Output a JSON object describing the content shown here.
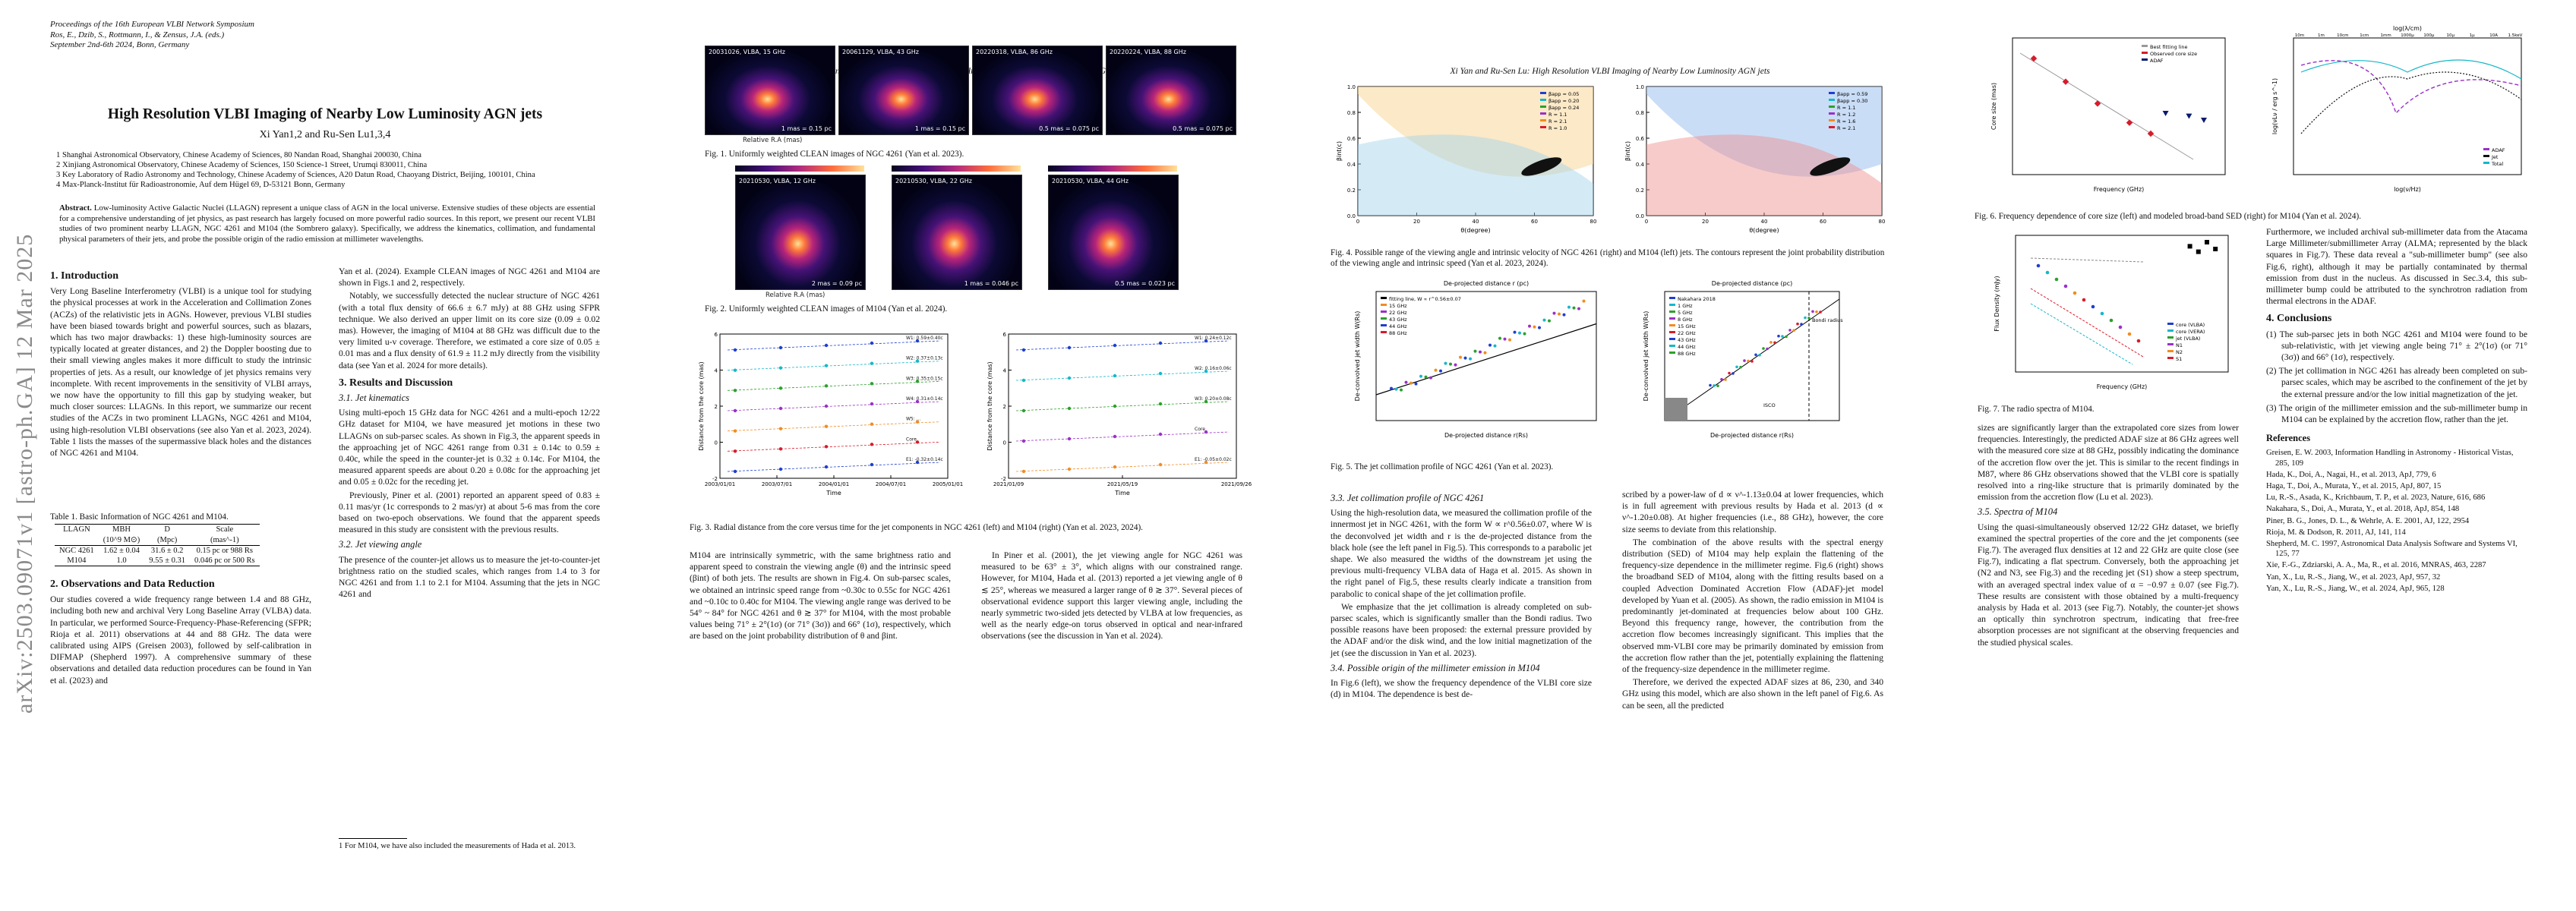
{
  "arxiv_id": "arXiv:2503.09071v1  [astro-ph.GA]  12 Mar 2025",
  "proceedings": [
    "Proceedings of the 16th European VLBI Network Symposium",
    "Ros, E., Dzib, S., Rottmann, I., & Zensus, J.A. (eds.)",
    "September 2nd-6th 2024, Bonn, Germany"
  ],
  "title": "High Resolution VLBI Imaging of Nearby Low Luminosity AGN jets",
  "authors": "Xi Yan1,2 and Ru-Sen Lu1,3,4",
  "affiliations": [
    "1 Shanghai Astronomical Observatory, Chinese Academy of Sciences, 80 Nandan Road, Shanghai 200030, China",
    "2 Xinjiang Astronomical Observatory, Chinese Academy of Sciences, 150 Science-1 Street, Urumqi 830011, China",
    "3 Key Laboratory of Radio Astronomy and Technology, Chinese Academy of Sciences, A20 Datun Road, Chaoyang District, Beijing, 100101, China",
    "4 Max-Planck-Institut für Radioastronomie, Auf dem Hügel 69, D-53121 Bonn, Germany"
  ],
  "abstract_label": "Abstract.",
  "abstract": "Low-luminosity Active Galactic Nuclei (LLAGN) represent a unique class of AGN in the local universe. Extensive studies of these objects are essential for a comprehensive understanding of jet physics, as past research has largely focused on more powerful radio sources. In this report, we present our recent VLBI studies of two prominent nearby LLAGN, NGC 4261 and M104 (the Sombrero galaxy). Specifically, we address the kinematics, collimation, and fundamental physical parameters of their jets, and probe the possible origin of the radio emission at millimeter wavelengths.",
  "running_head": "Xi Yan and Ru-Sen Lu: High Resolution VLBI Imaging of Nearby Low Luminosity AGN jets",
  "sec1_title": "1. Introduction",
  "sec1_p1": "Very Long Baseline Interferometry (VLBI) is a unique tool for studying the physical processes at work in the Acceleration and Collimation Zones (ACZs) of the relativistic jets in AGNs. However, previous VLBI studies have been biased towards bright and powerful sources, such as blazars, which has two major drawbacks: 1) these high-luminosity sources are typically located at greater distances, and 2) the Doppler boosting due to their small viewing angles makes it more difficult to study the intrinsic properties of jets. As a result, our knowledge of jet physics remains very incomplete. With recent improvements in the sensitivity of VLBI arrays, we now have the opportunity to fill this gap by studying weaker, but much closer sources: LLAGNs. In this report, we summarize our recent studies of the ACZs in two prominent LLAGNs, NGC 4261 and M104, using high-resolution VLBI observations (see also Yan et al. 2023, 2024). Table 1 lists the masses of the supermassive black holes and the distances of NGC 4261 and M104.",
  "table1_caption": "Table 1. Basic Information of NGC 4261 and M104.",
  "table1": {
    "headers": [
      "LLAGN",
      "MBH",
      "D",
      "Scale"
    ],
    "units": [
      "",
      "(10^9 M⊙)",
      "(Mpc)",
      "(mas^-1)"
    ],
    "rows": [
      [
        "NGC 4261",
        "1.62 ± 0.04",
        "31.6 ± 0.2",
        "0.15 pc or 988 Rs"
      ],
      [
        "M104",
        "1.0",
        "9.55 ± 0.31",
        "0.046 pc or 500 Rs"
      ]
    ]
  },
  "sec2_title": "2. Observations and Data Reduction",
  "sec2_p1": "Our studies covered a wide frequency range between 1.4 and 88 GHz, including both new and archival Very Long Baseline Array (VLBA) data. In particular, we performed Source-Frequency-Phase-Referencing (SFPR; Rioja et al. 2011) observations at 44 and 88 GHz. The data were calibrated using AIPS (Greisen 2003), followed by self-calibration in DIFMAP (Shepherd 1997). A comprehensive summary of these observations and detailed data reduction procedures can be found in Yan et al. (2023) and",
  "p2_col1_cont": "Yan et al. (2024). Example CLEAN images of NGC 4261 and M104 are shown in Figs.1 and 2, respectively.",
  "p2_col1_p2": "Notably, we successfully detected the nuclear structure of NGC 4261 (with a total flux density of 66.6 ± 6.7 mJy) at 88 GHz using SFPR technique. We also derived an upper limit on its core size (0.09 ± 0.02 mas). However, the imaging of M104 at 88 GHz was difficult due to the very limited u-v coverage. Therefore, we estimated a core size of 0.05 ± 0.01 mas and a flux density of 61.9 ± 11.2 mJy directly from the visibility data (see Yan et al. 2024 for more details).",
  "sec3_title": "3. Results and Discussion",
  "sec31_title": "3.1. Jet kinematics",
  "sec31_p1": "Using multi-epoch 15 GHz data for NGC 4261 and a multi-epoch 12/22 GHz dataset for M104, we have measured jet motions in these two LLAGNs on sub-parsec scales. As shown in Fig.3, the apparent speeds in the approaching jet of NGC 4261 range from 0.31 ± 0.14c to 0.59 ± 0.40c, while the speed in the counter-jet is 0.32 ± 0.14c. For M104, the measured apparent speeds are about 0.20 ± 0.08c for the approaching jet and 0.05 ± 0.02c for the receding jet.",
  "sec31_p2": "Previously, Piner et al. (2001) reported an apparent speed of 0.83 ± 0.11 mas/yr (1c corresponds to 2 mas/yr) at about 5-6 mas from the core based on two-epoch observations. We found that the apparent speeds measured in this study are consistent with the previous results.",
  "sec32_title": "3.2. Jet viewing angle",
  "sec32_p1": "The presence of the counter-jet allows us to measure the jet-to-counter-jet brightness ratio on the studied scales, which ranges from 1.4 to 3 for NGC 4261 and from 1.1 to 2.1 for M104. Assuming that the jets in NGC 4261 and",
  "footnote": "1 For M104, we have also included the measurements of Hada et al. 2013.",
  "fig1_caption": "Fig. 1. Uniformly weighted CLEAN images of NGC 4261 (Yan et al. 2023).",
  "fig1_panels": [
    "20031026, VLBA, 15 GHz",
    "20061129, VLBA, 43 GHz",
    "20220318, VLBA, 86 GHz",
    "20220224, VLBA, 88 GHz"
  ],
  "fig1_beams": [
    "1 mas = 0.15 pc",
    "1 mas = 0.15 pc",
    "0.5 mas = 0.075 pc",
    "0.5 mas = 0.075 pc"
  ],
  "fig2_caption": "Fig. 2. Uniformly weighted CLEAN images of M104 (Yan et al. 2024).",
  "fig2_panels": [
    "20210530, VLBA, 12 GHz",
    "20210530, VLBA, 22 GHz",
    "20210530, VLBA, 44 GHz"
  ],
  "fig2_beams": [
    "2 mas = 0.09 pc",
    "1 mas = 0.046 pc",
    "0.5 mas = 0.023 pc"
  ],
  "img_xlabel": "Relative R.A (mas)",
  "img_ylabel": "Relative Dec (mas)",
  "fig3_caption": "Fig. 3. Radial distance from the core versus time for the jet components in NGC 4261 (left) and M104 (right) (Yan et al. 2023, 2024).",
  "fig3_left": {
    "xlabel": "Time",
    "ylabel": "Distance from the core (mas)",
    "xticks": [
      "2003/01/01",
      "2003/07/01",
      "2004/01/01",
      "2004/07/01",
      "2005/01/01"
    ],
    "yticks": [
      "-2",
      "0",
      "2",
      "4",
      "6"
    ],
    "labels": [
      "W1: 0.59±0.40c",
      "W2: 0.37±0.13c",
      "W3: 0.35±0.15c",
      "W4: 0.31±0.14c",
      "W5: ...",
      "Core",
      "E1: -0.32±0.14c"
    ]
  },
  "fig3_right": {
    "xlabel": "Time",
    "ylabel": "Distance from the core (mas)",
    "xticks": [
      "2021/01/09",
      "2021/05/19",
      "2021/09/26"
    ],
    "yticks": [
      "-2",
      "0",
      "2",
      "4",
      "6"
    ],
    "labels": [
      "W1: 0.24±0.12c",
      "W2: 0.16±0.06c",
      "W3: 0.20±0.08c",
      "Core",
      "E1: -0.05±0.02c"
    ]
  },
  "p2_col2_p1": "M104 are intrinsically symmetric, with the same brightness ratio and apparent speed to constrain the viewing angle (θ) and the intrinsic speed (βint) of both jets. The results are shown in Fig.4. On sub-parsec scales, we obtained an intrinsic speed range from ~0.30c to 0.55c for NGC 4261 and ~0.10c to 0.40c for M104. The viewing angle range was derived to be 54° ~ 84° for NGC 4261 and θ ≳ 37° for M104, with the most probable values being 71° ± 2°(1σ) (or 71° (3σ)) and 66° (1σ), respectively, which are based on the joint probability distribution of θ and βint.",
  "p2_col2_p2": "In Piner et al. (2001), the jet viewing angle for NGC 4261 was measured to be 63° ± 3°, which aligns with our constrained range. However, for M104, Hada et al. (2013) reported a jet viewing angle of θ ≲ 25°, whereas we measured a larger range of θ ≳ 37°. Several pieces of observational evidence support this larger viewing angle, including the nearly symmetric two-sided jets detected by VLBA at low frequencies, as well as the nearly edge-on torus observed in optical and near-infrared observations (see the discussion in Yan et al. 2024).",
  "fig4_caption": "Fig. 4. Possible range of the viewing angle and intrinsic velocity of NGC 4261 (right) and M104 (left) jets. The contours represent the joint probability distribution of the viewing angle and intrinsic speed (Yan et al. 2023, 2024).",
  "fig4_left": {
    "xlabel": "θ(degree)",
    "ylabel": "βint(c)",
    "xticks": [
      "0",
      "20",
      "40",
      "60",
      "80"
    ],
    "yticks": [
      "0.0",
      "0.2",
      "0.4",
      "0.6",
      "0.8",
      "1.0"
    ],
    "legend": [
      "βapp = 0.05",
      "βapp = 0.20",
      "βapp = 0.24",
      "R = 1.1",
      "R = 2.1",
      "R = 1.0"
    ]
  },
  "fig4_right": {
    "xlabel": "θ(degree)",
    "ylabel": "βint(c)",
    "xticks": [
      "0",
      "20",
      "40",
      "60",
      "80"
    ],
    "yticks": [
      "0.0",
      "0.2",
      "0.4",
      "0.6",
      "0.8",
      "1.0"
    ],
    "legend": [
      "βapp = 0.59",
      "βapp = 0.30",
      "R = 1.1",
      "R = 1.2",
      "R = 1.6",
      "R = 2.1"
    ]
  },
  "fig5_caption": "Fig. 5. The jet collimation profile of NGC 4261 (Yan et al. 2023).",
  "fig5_left": {
    "toplabel": "De-projected distance r (pc)",
    "xlabel": "De-projected distance r(Rs)",
    "ylabel": "De-convolved jet width W(Rs)",
    "legend": [
      "fitting line, W ∝ r^0.56±0.07",
      "15 GHz",
      "22 GHz",
      "43 GHz",
      "44 GHz",
      "88 GHz"
    ]
  },
  "fig5_right": {
    "toplabel": "De-projected distance (pc)",
    "xlabel": "De-projected distance r(Rs)",
    "ylabel": "De-convolved jet width W(Rs)",
    "legend": [
      "Nakahara 2018",
      "1 GHz",
      "5 GHz",
      "8 GHz",
      "15 GHz",
      "22 GHz",
      "43 GHz",
      "44 GHz",
      "88 GHz"
    ],
    "annot": [
      "Bondi radius",
      "ISCO"
    ]
  },
  "sec33_title": "3.3. Jet collimation profile of NGC 4261",
  "sec33_p1": "Using the high-resolution data, we measured the collimation profile of the innermost jet in NGC 4261, with the form W ∝ r^0.56±0.07, where W is the deconvolved jet width and r is the de-projected distance from the black hole (see the left panel in Fig.5). This corresponds to a parabolic jet shape. We also measured the widths of the downstream jet using the previous multi-frequency VLBA data of Haga et al. 2015. As shown in the right panel of Fig.5, these results clearly indicate a transition from parabolic to conical shape of the jet collimation profile.",
  "sec33_p2": "We emphasize that the jet collimation is already completed on sub-parsec scales, which is significantly smaller than the Bondi radius. Two possible reasons have been proposed: the external pressure provided by the ADAF and/or the disk wind, and the low initial magnetization of the jet (see the discussion in Yan et al. 2023).",
  "sec34_title": "3.4. Possible origin of the millimeter emission in M104",
  "sec34_p1": "In Fig.6 (left), we show the frequency dependence of the VLBI core size (d) in M104. The dependence is best de-",
  "p3_col2_p1": "scribed by a power-law of d ∝ ν^-1.13±0.04 at lower frequencies, which is in full agreement with previous results by Hada et al. 2013 (d ∝ ν^-1.20±0.08). At higher frequencies (i.e., 88 GHz), however, the core size seems to deviate from this relationship.",
  "p3_col2_p2": "The combination of the above results with the spectral energy distribution (SED) of M104 may help explain the flattening of the frequency-size dependence in the millimeter regime. Fig.6 (right) shows the broadband SED of M104, along with the fitting results based on a coupled Advection Dominated Accretion Flow (ADAF)-jet model developed by Yuan et al. (2005). As shown, the radio emission in M104 is predominantly jet-dominated at frequencies below about 100 GHz. Beyond this frequency range, however, the contribution from the accretion flow becomes increasingly significant. This implies that the observed mm-VLBI core may be primarily dominated by emission from the accretion flow rather than the jet, potentially explaining the flattening of the frequency-size dependence in the millimeter regime.",
  "p3_col2_p3": "Therefore, we derived the expected ADAF sizes at 86, 230, and 340 GHz using this model, which are also shown in the left panel of Fig.6. As can be seen, all the predicted",
  "fig6_caption": "Fig. 6. Frequency dependence of core size (left) and modeled broad-band SED (right) for M104 (Yan et al. 2024).",
  "fig6_left": {
    "xlabel": "Frequency (GHz)",
    "ylabel": "Core size (mas)",
    "legend": [
      "Best fitting line",
      "Observed core size",
      "ADAF"
    ]
  },
  "fig6_right": {
    "xlabel": "log(ν/Hz)",
    "ylabel": "log(νLν / erg s^-1)",
    "toplabel": "log(λ/cm)",
    "topticks": [
      "10m",
      "1m",
      "10cm",
      "1cm",
      "1mm",
      "1000μ",
      "100μ",
      "10μ",
      "1μ",
      "10A",
      "1.5keV"
    ],
    "legend": [
      "ADAF",
      "Jet",
      "Total"
    ]
  },
  "fig7_caption": "Fig. 7. The radio spectra of M104.",
  "fig7": {
    "xlabel": "Frequency (GHz)",
    "ylabel": "Flux Density (mJy)",
    "legend": [
      "core (VLBA)",
      "core (VERA)",
      "jet (VLBA)",
      "N1",
      "N2",
      "S1"
    ]
  },
  "p4_col1_p1": "sizes are significantly larger than the extrapolated core sizes from lower frequencies. Interestingly, the predicted ADAF size at 86 GHz agrees well with the measured core size at 88 GHz, possibly indicating the dominance of the accretion flow over the jet. This is similar to the recent findings in M87, where 86 GHz observations showed that the VLBI core is spatially resolved into a ring-like structure that is primarily dominated by the emission from the accretion flow (Lu et al. 2023).",
  "sec35_title": "3.5. Spectra of M104",
  "sec35_p1": "Using the quasi-simultaneously observed 12/22 GHz dataset, we briefly examined the spectral properties of the core and the jet components (see Fig.7). The averaged flux densities at 12 and 22 GHz are quite close (see Fig.7), indicating a flat spectrum. Conversely, both the approaching jet (N2 and N3, see Fig.3) and the receding jet (S1) show a steep spectrum, with an averaged spectral index value of α = −0.97 ± 0.07 (see Fig.7). These results are consistent with those obtained by a multi-frequency analysis by Hada et al. 2013 (see Fig.7). Notably, the counter-jet shows an optically thin synchrotron spectrum, indicating that free-free absorption processes are not significant at the observing frequencies and the studied physical scales.",
  "p4_col2_p1": "Furthermore, we included archival sub-millimeter data from the Atacama Large Millimeter/submillimeter Array (ALMA; represented by the black squares in Fig.7). These data reveal a \"sub-millimeter bump\" (see also Fig.6, right), although it may be partially contaminated by thermal emission from dust in the nucleus. As discussed in Sec.3.4, this sub-millimeter bump could be attributed to the synchrotron radiation from thermal electrons in the ADAF.",
  "sec4_title": "4. Conclusions",
  "conclusions": [
    "(1) The sub-parsec jets in both NGC 4261 and M104 were found to be sub-relativistic, with jet viewing angle being 71° ± 2°(1σ) (or 71° (3σ)) and 66° (1σ), respectively.",
    "(2) The jet collimation in NGC 4261 has already been completed on sub-parsec scales, which may be ascribed to the confinement of the jet by the external pressure and/or the low initial magnetization of the jet.",
    "(3) The origin of the millimeter emission and the sub-millimeter bump in M104 can be explained by the accretion flow, rather than the jet."
  ],
  "refs_title": "References",
  "references": [
    "Greisen, E. W. 2003, Information Handling in Astronomy - Historical Vistas, 285, 109",
    "Hada, K., Doi, A., Nagai, H., et al. 2013, ApJ, 779, 6",
    "Haga, T., Doi, A., Murata, Y., et al. 2015, ApJ, 807, 15",
    "Lu, R.-S., Asada, K., Krichbaum, T. P., et al. 2023, Nature, 616, 686",
    "Nakahara, S., Doi, A., Murata, Y., et al. 2018, ApJ, 854, 148",
    "Piner, B. G., Jones, D. L., & Wehrle, A. E. 2001, AJ, 122, 2954",
    "Rioja, M. & Dodson, R. 2011, AJ, 141, 114",
    "Shepherd, M. C. 1997, Astronomical Data Analysis Software and Systems VI, 125, 77",
    "Xie, F.-G., Zdziarski, A. A., Ma, R., et al. 2016, MNRAS, 463, 2287",
    "Yan, X., Lu, R.-S., Jiang, W., et al. 2023, ApJ, 957, 32",
    "Yan, X., Lu, R.-S., Jiang, W., et al. 2024, ApJ, 965, 128"
  ],
  "colors": {
    "imgbg": "#05051c",
    "series_blue": "#1f3fd0",
    "series_red": "#d81b2a",
    "series_cyan": "#16b7c9",
    "series_green": "#2ca02c",
    "series_purple": "#9b30c8",
    "series_orange": "#f28b20"
  }
}
